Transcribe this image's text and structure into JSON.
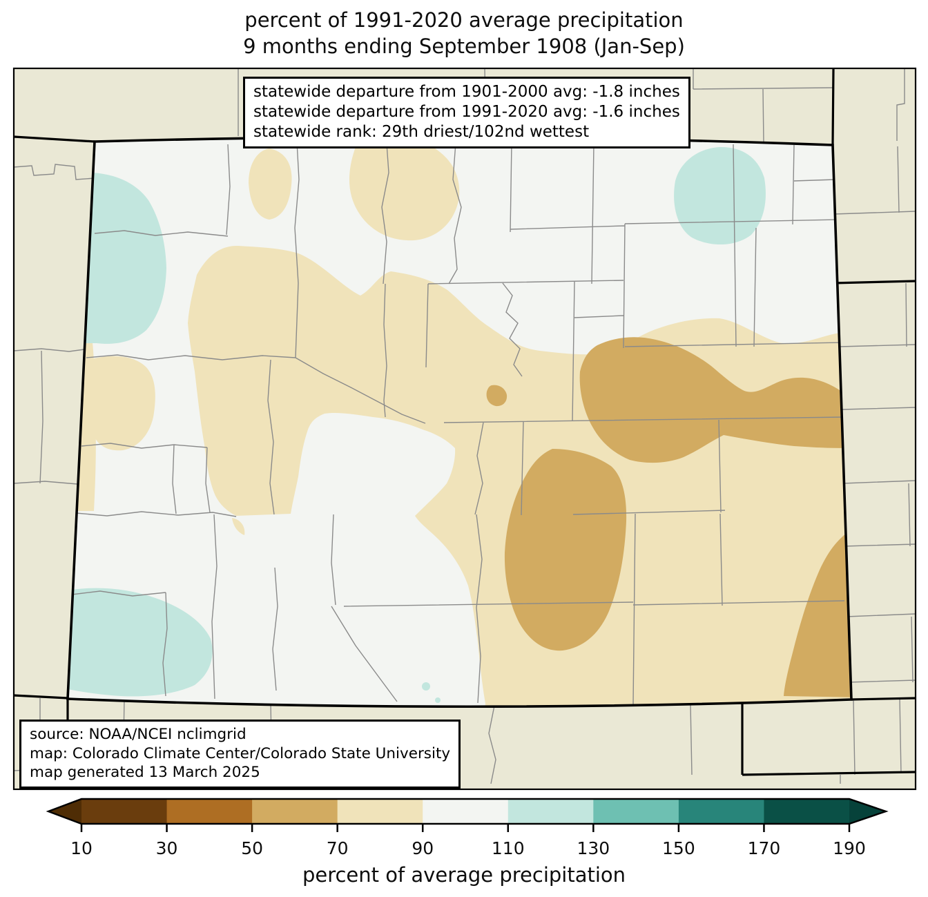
{
  "title": {
    "line1": "percent of 1991-2020 average precipitation",
    "line2": "9 months ending September 1908 (Jan-Sep)"
  },
  "stats_box": {
    "line1": "statewide departure from 1901-2000 avg: -1.8 inches",
    "line2": "statewide departure from 1991-2020 avg: -1.6 inches",
    "line3": "statewide rank: 29th driest/102nd wettest"
  },
  "source_box": {
    "line1": "source: NOAA/NCEI nclimgrid",
    "line2": "map: Colorado Climate Center/Colorado State University",
    "line3": "map generated 13 March 2025"
  },
  "map": {
    "region": "Colorado",
    "colors": {
      "outside_states": "#eae8d5",
      "neutral_90_110": "#f3f5f2",
      "tan_70_90": "#f0e3ba",
      "dry_50_70": "#d2ab61",
      "wet_110_130": "#c2e6de",
      "county_line": "#8a8a8a",
      "state_border": "#000000"
    }
  },
  "colorbar": {
    "label": "percent of average precipitation",
    "ticks": [
      "10",
      "30",
      "50",
      "70",
      "90",
      "110",
      "130",
      "150",
      "170",
      "190"
    ],
    "segments": [
      {
        "range": "10-30",
        "color": "#6a3d0d"
      },
      {
        "range": "30-50",
        "color": "#ae6e23"
      },
      {
        "range": "50-70",
        "color": "#d2ab61"
      },
      {
        "range": "70-90",
        "color": "#f0e3ba"
      },
      {
        "range": "90-110",
        "color": "#f3f5f2"
      },
      {
        "range": "110-130",
        "color": "#c2e6de"
      },
      {
        "range": "130-150",
        "color": "#6ec0b2"
      },
      {
        "range": "150-170",
        "color": "#28857a"
      },
      {
        "range": "170-190",
        "color": "#0a5046"
      }
    ],
    "left_arrow_color": "#4f2d05",
    "right_arrow_color": "#06423a"
  }
}
